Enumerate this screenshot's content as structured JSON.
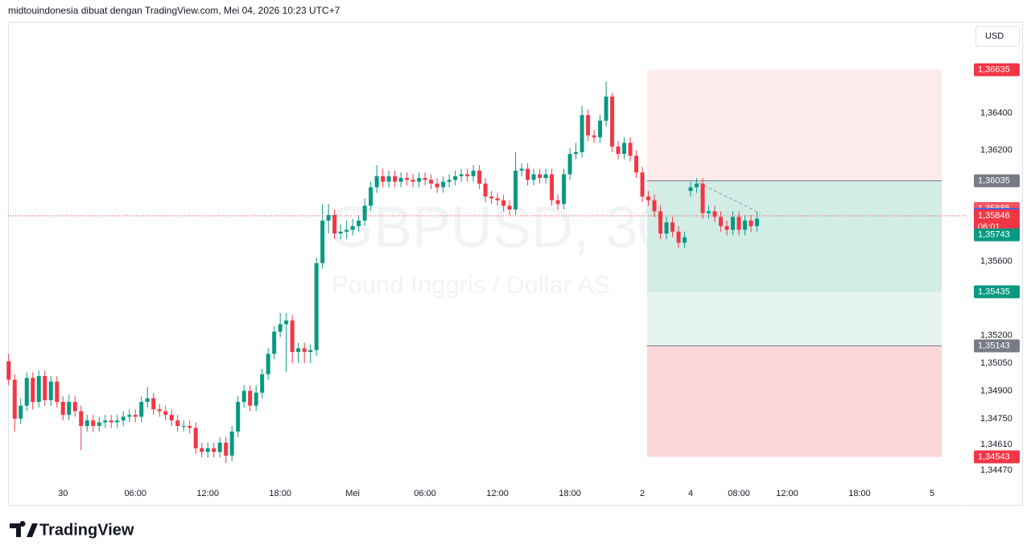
{
  "header": "midtouindonesia dibuat dengan TradingView.com, Mei 04, 2026 10:23 UTC+7",
  "currency": "USD",
  "brand": "TradingView",
  "chart_data": {
    "type": "candlestick",
    "title": "GBPUSD, 30",
    "subtitle": "Pound Inggris / Dollar AS",
    "up_color": "#089981",
    "down_color": "#f23645",
    "open": [
      1.3506,
      1.3496,
      1.3475,
      1.3482,
      1.3497,
      1.3484,
      1.3498,
      1.3485,
      1.3495,
      1.3484,
      1.3477,
      1.3484,
      1.3479,
      1.3471,
      1.3474,
      1.3471,
      1.3473,
      1.3474,
      1.3473,
      1.3474,
      1.3476,
      1.3477,
      1.3476,
      1.3484,
      1.3486,
      1.348,
      1.3479,
      1.3477,
      1.3474,
      1.3471,
      1.3471,
      1.347,
      1.3459,
      1.3457,
      1.3459,
      1.3457,
      1.3462,
      1.3455,
      1.3468,
      1.3484,
      1.349,
      1.3482,
      1.3489,
      1.3499,
      1.351,
      1.3522,
      1.3526,
      1.3528,
      1.3511,
      1.3513,
      1.3511,
      1.3512,
      1.3559,
      1.3582,
      1.3585,
      1.3575,
      1.3576,
      1.3577,
      1.3579,
      1.3582,
      1.359,
      1.36,
      1.3606,
      1.3603,
      1.3606,
      1.3603,
      1.3605,
      1.3604,
      1.3603,
      1.3605,
      1.3604,
      1.3602,
      1.36,
      1.3603,
      1.3604,
      1.3606,
      1.3607,
      1.3606,
      1.3609,
      1.3602,
      1.3595,
      1.3594,
      1.3593,
      1.359,
      1.3588,
      1.3609,
      1.361,
      1.3604,
      1.3607,
      1.3605,
      1.3607,
      1.3593,
      1.3591,
      1.3607,
      1.3618,
      1.3619,
      1.3639,
      1.3628,
      1.3627,
      1.3636,
      1.3649,
      1.3622,
      1.3618,
      1.3624,
      1.3617,
      1.3608,
      1.3595,
      1.3593,
      1.3587,
      1.3575,
      1.3581,
      1.3576,
      1.357,
      1.3598,
      1.36,
      1.3602,
      1.3586,
      1.3587,
      1.3584,
      1.3579,
      1.3577,
      1.3584,
      1.3577,
      1.3582,
      1.3579
    ],
    "high": [
      1.351,
      1.3499,
      1.3486,
      1.35,
      1.35,
      1.3501,
      1.3501,
      1.3498,
      1.3498,
      1.3487,
      1.3488,
      1.3487,
      1.3482,
      1.3477,
      1.3477,
      1.3476,
      1.3477,
      1.3477,
      1.3477,
      1.3479,
      1.348,
      1.348,
      1.3487,
      1.3492,
      1.3489,
      1.3483,
      1.3482,
      1.348,
      1.3477,
      1.3474,
      1.3474,
      1.3473,
      1.3462,
      1.3462,
      1.3462,
      1.3465,
      1.3465,
      1.3471,
      1.3487,
      1.3493,
      1.3493,
      1.3493,
      1.3502,
      1.3513,
      1.3525,
      1.3532,
      1.3532,
      1.3531,
      1.3516,
      1.3516,
      1.3515,
      1.3562,
      1.3591,
      1.3591,
      1.3588,
      1.358,
      1.3582,
      1.3583,
      1.3585,
      1.3594,
      1.3603,
      1.3612,
      1.361,
      1.3609,
      1.3609,
      1.3608,
      1.3608,
      1.3607,
      1.3608,
      1.3608,
      1.3607,
      1.3605,
      1.3606,
      1.3607,
      1.3609,
      1.361,
      1.361,
      1.3612,
      1.3612,
      1.3605,
      1.3598,
      1.3597,
      1.3596,
      1.3593,
      1.3619,
      1.3613,
      1.3613,
      1.361,
      1.361,
      1.361,
      1.361,
      1.3596,
      1.361,
      1.3621,
      1.3624,
      1.3644,
      1.3642,
      1.3631,
      1.3639,
      1.3657,
      1.3651,
      1.3625,
      1.3627,
      1.3627,
      1.362,
      1.3611,
      1.3598,
      1.3596,
      1.359,
      1.3584,
      1.3584,
      1.3579,
      1.3576,
      1.3603,
      1.3605,
      1.3605,
      1.359,
      1.359,
      1.3587,
      1.3582,
      1.3587,
      1.3587,
      1.3585,
      1.3585,
      1.3587
    ],
    "low": [
      1.3493,
      1.3468,
      1.3472,
      1.3479,
      1.348,
      1.3481,
      1.3482,
      1.3482,
      1.3481,
      1.3474,
      1.3474,
      1.3476,
      1.3458,
      1.3468,
      1.3468,
      1.3468,
      1.347,
      1.347,
      1.347,
      1.3471,
      1.3473,
      1.3473,
      1.3473,
      1.3481,
      1.3477,
      1.3476,
      1.3474,
      1.3471,
      1.3468,
      1.3468,
      1.3467,
      1.3456,
      1.3454,
      1.3454,
      1.3454,
      1.3454,
      1.3451,
      1.3452,
      1.3465,
      1.3481,
      1.3479,
      1.3479,
      1.3486,
      1.3496,
      1.3507,
      1.3519,
      1.35,
      1.3505,
      1.3505,
      1.3505,
      1.3505,
      1.3509,
      1.3556,
      1.3575,
      1.3572,
      1.3572,
      1.3572,
      1.3574,
      1.3576,
      1.3579,
      1.3587,
      1.3597,
      1.36,
      1.36,
      1.36,
      1.36,
      1.3601,
      1.36,
      1.36,
      1.3601,
      1.3599,
      1.3597,
      1.3597,
      1.36,
      1.3601,
      1.3603,
      1.3603,
      1.3603,
      1.3599,
      1.3592,
      1.3591,
      1.359,
      1.3587,
      1.3585,
      1.3585,
      1.3606,
      1.3601,
      1.3601,
      1.3602,
      1.3602,
      1.359,
      1.3588,
      1.3588,
      1.3604,
      1.3615,
      1.3616,
      1.3625,
      1.3624,
      1.3624,
      1.3633,
      1.3619,
      1.3615,
      1.3615,
      1.3614,
      1.3605,
      1.3592,
      1.359,
      1.3584,
      1.3572,
      1.3572,
      1.3573,
      1.3567,
      1.3567,
      1.3595,
      1.3597,
      1.3583,
      1.3583,
      1.3581,
      1.3576,
      1.3574,
      1.3574,
      1.3574,
      1.3574,
      1.3576,
      1.3576
    ],
    "close": [
      1.3496,
      1.3475,
      1.3482,
      1.3497,
      1.3484,
      1.3498,
      1.3485,
      1.3495,
      1.3484,
      1.3477,
      1.3484,
      1.3479,
      1.3471,
      1.3474,
      1.3471,
      1.3473,
      1.3474,
      1.3473,
      1.3474,
      1.3476,
      1.3477,
      1.3476,
      1.3484,
      1.3486,
      1.348,
      1.3479,
      1.3477,
      1.3474,
      1.3471,
      1.3471,
      1.347,
      1.3459,
      1.3457,
      1.3459,
      1.3457,
      1.3462,
      1.3455,
      1.3468,
      1.3484,
      1.349,
      1.3482,
      1.3489,
      1.3499,
      1.351,
      1.3522,
      1.3526,
      1.3528,
      1.3511,
      1.3513,
      1.3511,
      1.3512,
      1.3559,
      1.3582,
      1.3585,
      1.3575,
      1.3576,
      1.3577,
      1.3579,
      1.3582,
      1.359,
      1.36,
      1.3606,
      1.3603,
      1.3606,
      1.3603,
      1.3605,
      1.3604,
      1.3603,
      1.3605,
      1.3604,
      1.3602,
      1.36,
      1.3603,
      1.3604,
      1.3606,
      1.3607,
      1.3606,
      1.3609,
      1.3602,
      1.3595,
      1.3594,
      1.3593,
      1.359,
      1.3588,
      1.3609,
      1.361,
      1.3604,
      1.3607,
      1.3605,
      1.3607,
      1.3593,
      1.3591,
      1.3607,
      1.3618,
      1.3619,
      1.3639,
      1.3628,
      1.3627,
      1.3636,
      1.3649,
      1.3622,
      1.3618,
      1.3624,
      1.3617,
      1.3608,
      1.3595,
      1.3593,
      1.3587,
      1.3575,
      1.3581,
      1.3576,
      1.357,
      1.3573,
      1.36,
      1.3602,
      1.3586,
      1.3587,
      1.3584,
      1.3579,
      1.3577,
      1.3584,
      1.3577,
      1.3582,
      1.3579,
      1.3583
    ],
    "xlim": [
      -0.1,
      158.6
    ],
    "xticks": [
      {
        "value": 9,
        "label": "30"
      },
      {
        "value": 21,
        "label": "06:00"
      },
      {
        "value": 33,
        "label": "12:00"
      },
      {
        "value": 45,
        "label": "18:00"
      },
      {
        "value": 57,
        "label": "Mei"
      },
      {
        "value": 69,
        "label": "06:00"
      },
      {
        "value": 81,
        "label": "12:00"
      },
      {
        "value": 93,
        "label": "18:00"
      },
      {
        "value": 105,
        "label": "2"
      },
      {
        "value": 113,
        "label": "4"
      },
      {
        "value": 121,
        "label": "08:00"
      },
      {
        "value": 129,
        "label": "12:00"
      },
      {
        "value": 141,
        "label": "18:00"
      },
      {
        "value": 153,
        "label": "5"
      }
    ],
    "ylim": [
      1.3441,
      1.3689
    ],
    "yticks": [
      {
        "value": 1.364,
        "label": "1,36400"
      },
      {
        "value": 1.362,
        "label": "1,36200"
      },
      {
        "value": 1.356,
        "label": "1,35600"
      },
      {
        "value": 1.352,
        "label": "1,35200"
      },
      {
        "value": 1.3505,
        "label": "1,35050"
      },
      {
        "value": 1.349,
        "label": "1,34900"
      },
      {
        "value": 1.3475,
        "label": "1,34750"
      },
      {
        "value": 1.3461,
        "label": "1,34610"
      },
      {
        "value": 1.3447,
        "label": "1,34470"
      }
    ],
    "grid": false,
    "zones": [
      {
        "from": 1.36635,
        "to": 1.36035,
        "color": "#fdebec"
      },
      {
        "from": 1.36035,
        "to": 1.35743,
        "color": "#d2ece6"
      },
      {
        "from": 1.35743,
        "to": 1.35435,
        "color": "#d2ece6"
      },
      {
        "from": 1.35435,
        "to": 1.35143,
        "color": "#e6f4f1"
      },
      {
        "from": 1.35143,
        "to": 1.34543,
        "color": "#fbd7da"
      }
    ],
    "price_labels": [
      {
        "value": 1.36635,
        "label": "1,36635",
        "color": "#f23645"
      },
      {
        "value": 1.36035,
        "label": "1,36035",
        "color": "#787b86"
      },
      {
        "value": 1.35885,
        "label": "1,35885",
        "color": "#f7525f"
      },
      {
        "value": 1.35853,
        "label": "1,35853",
        "color": "#2962ff"
      },
      {
        "value": 1.35846,
        "label": "1,35846",
        "color": "#f23645",
        "countdown": "06:01"
      },
      {
        "value": 1.35743,
        "label": "1,35743",
        "color": "#089981"
      },
      {
        "value": 1.35435,
        "label": "1,35435",
        "color": "#089981"
      },
      {
        "value": 1.35143,
        "label": "1,35143",
        "color": "#787b86"
      },
      {
        "value": 1.34543,
        "label": "1,34543",
        "color": "#f23645"
      }
    ]
  }
}
